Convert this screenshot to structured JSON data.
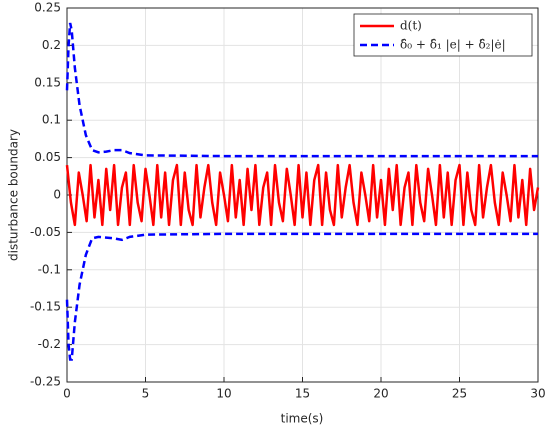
{
  "chart_data": {
    "type": "line",
    "xlabel": "time(s)",
    "ylabel": "disturbance boundary",
    "xlim": [
      0,
      30
    ],
    "ylim": [
      -0.25,
      0.25
    ],
    "xticks": [
      0,
      5,
      10,
      15,
      20,
      25,
      30
    ],
    "yticks": [
      -0.25,
      -0.2,
      -0.15,
      -0.1,
      -0.05,
      0,
      0.05,
      0.1,
      0.15,
      0.2,
      0.25
    ],
    "grid": true,
    "legend": "top-right",
    "x": [
      0,
      0.25,
      0.5,
      0.75,
      1,
      1.25,
      1.5,
      1.75,
      2,
      2.25,
      2.5,
      2.75,
      3,
      3.25,
      3.5,
      3.75,
      4,
      4.25,
      4.5,
      4.75,
      5,
      5.25,
      5.5,
      5.75,
      6,
      6.25,
      6.5,
      6.75,
      7,
      7.25,
      7.5,
      7.75,
      8,
      8.25,
      8.5,
      8.75,
      9,
      9.25,
      9.5,
      9.75,
      10,
      10.25,
      10.5,
      10.75,
      11,
      11.25,
      11.5,
      11.75,
      12,
      12.25,
      12.5,
      12.75,
      13,
      13.25,
      13.5,
      13.75,
      14,
      14.25,
      14.5,
      14.75,
      15,
      15.25,
      15.5,
      15.75,
      16,
      16.25,
      16.5,
      16.75,
      17,
      17.25,
      17.5,
      17.75,
      18,
      18.25,
      18.5,
      18.75,
      19,
      19.25,
      19.5,
      19.75,
      20,
      20.25,
      20.5,
      20.75,
      21,
      21.25,
      21.5,
      21.75,
      22,
      22.25,
      22.5,
      22.75,
      23,
      23.25,
      23.5,
      23.75,
      24,
      24.25,
      24.5,
      24.75,
      25,
      25.25,
      25.5,
      25.75,
      26,
      26.25,
      26.5,
      26.75,
      27,
      27.25,
      27.5,
      27.75,
      28,
      28.25,
      28.5,
      28.75,
      29,
      29.25,
      29.5,
      29.75,
      30
    ],
    "series": [
      {
        "name": "d(t)",
        "color": "#ff0000",
        "values": [
          0.04,
          -0.01,
          -0.04,
          0.03,
          0.0,
          -0.035,
          0.04,
          -0.03,
          0.02,
          -0.04,
          0.035,
          -0.02,
          0.04,
          -0.04,
          0.01,
          0.03,
          -0.04,
          0.04,
          -0.01,
          -0.035,
          0.035,
          0.0,
          -0.04,
          0.04,
          -0.03,
          0.03,
          -0.04,
          0.02,
          0.04,
          -0.04,
          0.03,
          -0.02,
          -0.04,
          0.04,
          -0.03,
          0.01,
          0.04,
          -0.01,
          -0.04,
          0.03,
          0.0,
          -0.035,
          0.04,
          -0.03,
          0.02,
          -0.04,
          0.035,
          -0.02,
          0.04,
          -0.04,
          0.01,
          0.03,
          -0.04,
          0.04,
          -0.01,
          -0.035,
          0.035,
          0.0,
          -0.04,
          0.04,
          -0.03,
          0.03,
          -0.04,
          0.02,
          0.04,
          -0.04,
          0.03,
          -0.02,
          -0.04,
          0.04,
          -0.03,
          0.01,
          0.04,
          -0.01,
          -0.04,
          0.03,
          0.0,
          -0.035,
          0.04,
          -0.03,
          0.02,
          -0.04,
          0.035,
          -0.02,
          0.04,
          -0.04,
          0.01,
          0.03,
          -0.04,
          0.04,
          -0.01,
          -0.035,
          0.035,
          0.0,
          -0.04,
          0.04,
          -0.03,
          0.03,
          -0.04,
          0.02,
          0.04,
          -0.04,
          0.03,
          -0.02,
          -0.04,
          0.04,
          -0.03,
          0.01,
          0.04,
          -0.01,
          -0.04,
          0.03,
          0.0,
          -0.035,
          0.04,
          -0.03,
          0.02,
          -0.04,
          0.035,
          -0.02,
          0.01
        ]
      },
      {
        "name": "δ̂₀ + δ̂₁ |e| + δ̂₂|ė|",
        "color": "#0000ff",
        "x": [
          0,
          0.1,
          0.2,
          0.3,
          0.5,
          0.8,
          1.2,
          1.6,
          2,
          2.5,
          3,
          3.5,
          4,
          5,
          10,
          15,
          20,
          25,
          30
        ],
        "upper": [
          0.14,
          0.2,
          0.23,
          0.22,
          0.17,
          0.12,
          0.08,
          0.06,
          0.057,
          0.058,
          0.06,
          0.06,
          0.056,
          0.053,
          0.052,
          0.052,
          0.052,
          0.052,
          0.052
        ],
        "lower": [
          -0.14,
          -0.2,
          -0.22,
          -0.22,
          -0.17,
          -0.12,
          -0.08,
          -0.058,
          -0.056,
          -0.057,
          -0.058,
          -0.06,
          -0.056,
          -0.053,
          -0.052,
          -0.052,
          -0.052,
          -0.052,
          -0.052
        ]
      }
    ]
  }
}
